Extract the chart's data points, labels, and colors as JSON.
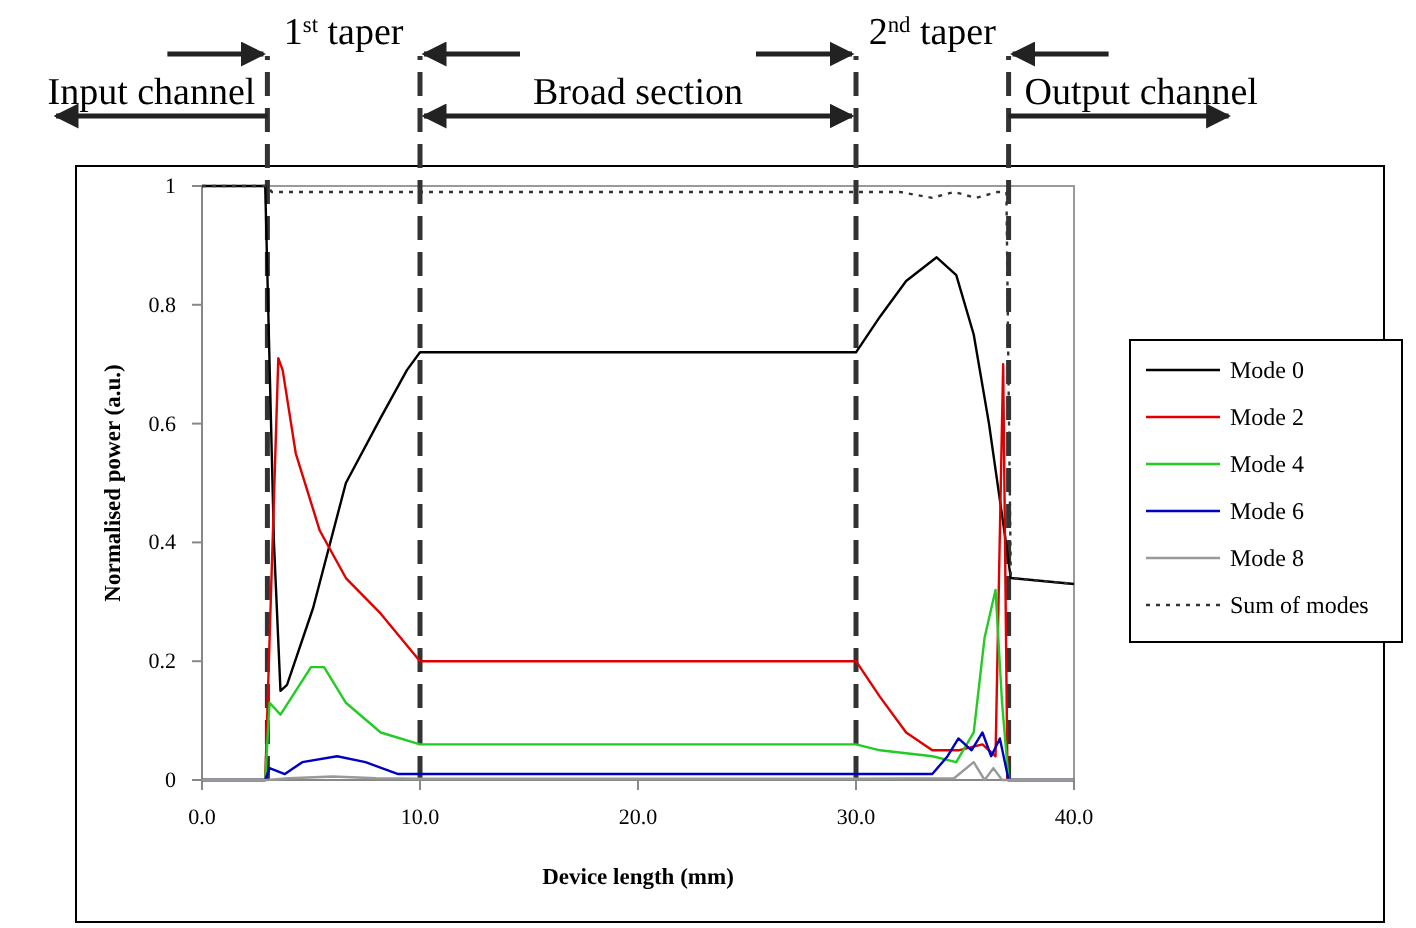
{
  "chart_data": {
    "type": "line",
    "xlabel": "Device length (mm)",
    "ylabel": "Normalised power (a.u.)",
    "xlim": [
      0,
      40
    ],
    "ylim": [
      0,
      1
    ],
    "xticks": [
      {
        "value": 0,
        "label": "0.0"
      },
      {
        "value": 10,
        "label": "10.0"
      },
      {
        "value": 20,
        "label": "20.0"
      },
      {
        "value": 30,
        "label": "30.0"
      },
      {
        "value": 40,
        "label": "40.0"
      }
    ],
    "yticks": [
      0,
      0.2,
      0.4,
      0.6,
      0.8,
      1
    ],
    "grid": false,
    "legend": "right",
    "marker": "none",
    "ref_lines": [
      {
        "axis": "x",
        "value": 3,
        "color": "#333333",
        "line_style": "dashed"
      },
      {
        "axis": "x",
        "value": 10,
        "color": "#333333",
        "line_style": "dashed"
      },
      {
        "axis": "x",
        "value": 30,
        "color": "#333333",
        "line_style": "dashed"
      },
      {
        "axis": "x",
        "value": 37,
        "color": "#333333",
        "line_style": "dashed"
      }
    ],
    "annotations": [
      "Input channel",
      "1$^{st}$ taper",
      "Broad section",
      "2$^{nd}$ taper",
      "Output channel"
    ],
    "series": [
      {
        "name": "Mode 0",
        "color": "#000000",
        "line_style": "solid",
        "x": [
          0,
          2.9,
          3.3,
          3.6,
          3.9,
          5.1,
          6.6,
          8.2,
          9.4,
          10,
          30,
          31.1,
          32.3,
          33.7,
          34.6,
          35.4,
          36.1,
          36.8,
          37.1,
          40
        ],
        "values": [
          1,
          1,
          0.4,
          0.15,
          0.16,
          0.29,
          0.5,
          0.61,
          0.69,
          0.72,
          0.72,
          0.78,
          0.84,
          0.88,
          0.85,
          0.75,
          0.6,
          0.42,
          0.34,
          0.33
        ]
      },
      {
        "name": "Mode 2",
        "color": "#e00000",
        "line_style": "solid",
        "x": [
          0,
          2.9,
          3.5,
          3.7,
          4.3,
          5.4,
          6.6,
          8.2,
          10,
          30,
          31.1,
          32.3,
          33.5,
          34.7,
          35.8,
          36.4,
          36.75,
          36.95,
          40
        ],
        "values": [
          0,
          0,
          0.71,
          0.69,
          0.55,
          0.42,
          0.34,
          0.28,
          0.2,
          0.2,
          0.14,
          0.08,
          0.05,
          0.05,
          0.06,
          0.04,
          0.7,
          0,
          0
        ]
      },
      {
        "name": "Mode 4",
        "color": "#22cc22",
        "line_style": "solid",
        "x": [
          0,
          2.9,
          3.1,
          3.6,
          5,
          5.6,
          6.6,
          8.2,
          10,
          30,
          31.1,
          33.5,
          34.6,
          35.4,
          35.9,
          36.4,
          36.7,
          37,
          40
        ],
        "values": [
          0,
          0,
          0.13,
          0.11,
          0.19,
          0.19,
          0.13,
          0.08,
          0.06,
          0.06,
          0.05,
          0.04,
          0.03,
          0.08,
          0.24,
          0.32,
          0.13,
          0,
          0
        ]
      },
      {
        "name": "Mode 6",
        "color": "#0000c0",
        "line_style": "solid",
        "x": [
          0,
          2.9,
          3.1,
          3.8,
          4.6,
          6.2,
          7.5,
          9,
          10,
          30,
          31.1,
          32.3,
          33.5,
          34.2,
          34.7,
          35.3,
          35.8,
          36.2,
          36.6,
          37,
          40
        ],
        "values": [
          0,
          0,
          0.02,
          0.01,
          0.03,
          0.04,
          0.03,
          0.01,
          0.01,
          0.01,
          0.01,
          0.01,
          0.01,
          0.04,
          0.07,
          0.05,
          0.08,
          0.04,
          0.07,
          0,
          0
        ]
      },
      {
        "name": "Mode 8",
        "color": "#999999",
        "line_style": "solid",
        "x": [
          0,
          3,
          4,
          6,
          8,
          10,
          30,
          34.5,
          35.4,
          35.9,
          36.3,
          36.7,
          37,
          40
        ],
        "values": [
          0,
          0,
          0.003,
          0.006,
          0.003,
          0.002,
          0.002,
          0.003,
          0.03,
          0,
          0.02,
          0,
          0,
          0
        ]
      },
      {
        "name": "Sum of modes",
        "color": "#333333",
        "line_style": "dotted",
        "x": [
          0,
          3,
          3.2,
          30,
          32,
          33.5,
          34.5,
          35.5,
          36.5,
          36.9,
          37.1,
          40
        ],
        "values": [
          1,
          1,
          0.99,
          0.99,
          0.99,
          0.98,
          0.99,
          0.98,
          0.99,
          0.99,
          0.34,
          0.33
        ]
      }
    ]
  }
}
